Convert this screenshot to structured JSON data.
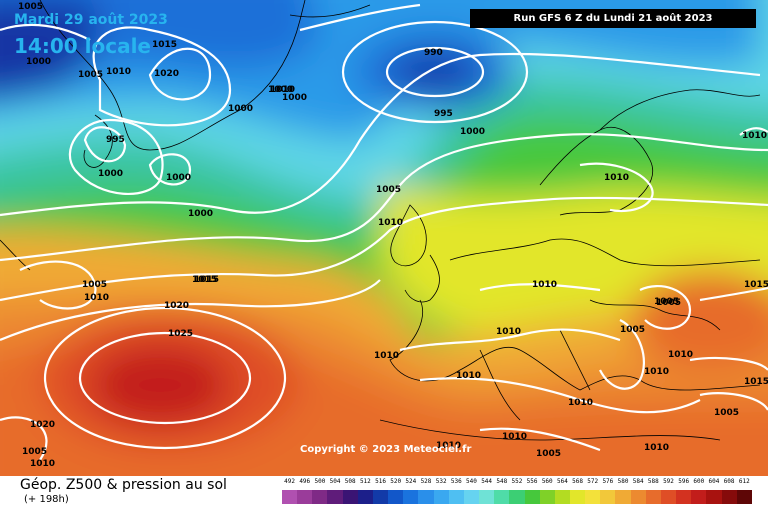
{
  "header": {
    "date": "Mardi 29 août 2023",
    "time": "14:00 locale",
    "run": "Run GFS 6 Z du Lundi 21 août 2023"
  },
  "footer": {
    "copyright": "Copyright © 2023 Meteociel.fr",
    "parameter": "Géop. Z500 & pression au sol",
    "range": "(+ 198h)"
  },
  "scale": {
    "labels": [
      "492",
      "496",
      "500",
      "504",
      "508",
      "512",
      "516",
      "520",
      "524",
      "528",
      "532",
      "536",
      "540",
      "544",
      "548",
      "552",
      "556",
      "560",
      "564",
      "568",
      "572",
      "576",
      "580",
      "584",
      "588",
      "592",
      "596",
      "600",
      "604",
      "608",
      "612"
    ],
    "colors": [
      "#b050b0",
      "#9a3c9a",
      "#7f2a86",
      "#5f1c7a",
      "#3a1474",
      "#1c1f8a",
      "#123aa8",
      "#1257c9",
      "#1a73de",
      "#2a8fea",
      "#3aa8f0",
      "#4fbff2",
      "#66d3f0",
      "#6fe2d6",
      "#4fdca8",
      "#3ccf74",
      "#46c83c",
      "#7fd128",
      "#b3dc22",
      "#e2e62a",
      "#f3e13a",
      "#f2c83a",
      "#f0aa35",
      "#ec8a30",
      "#e76c2c",
      "#df4e26",
      "#d33220",
      "#c21d1b",
      "#a8120f",
      "#860b0b",
      "#5e0606"
    ]
  },
  "map": {
    "pressure_labels": [
      "1005",
      "1015",
      "1000",
      "1010",
      "1020",
      "1005",
      "990",
      "1000",
      "1000",
      "995",
      "1000",
      "995",
      "1000",
      "1000",
      "1005",
      "1010",
      "1000",
      "1010",
      "1005",
      "1015",
      "1010",
      "1010",
      "1020",
      "1000",
      "1010",
      "1025",
      "1010",
      "1005",
      "1015",
      "1005",
      "1010",
      "1010",
      "1020",
      "1005",
      "1010",
      "1005",
      "1010",
      "1015",
      "1010",
      "1010",
      "1010",
      "1010",
      "1005",
      "1005",
      "1010",
      "1010",
      "1015"
    ]
  }
}
